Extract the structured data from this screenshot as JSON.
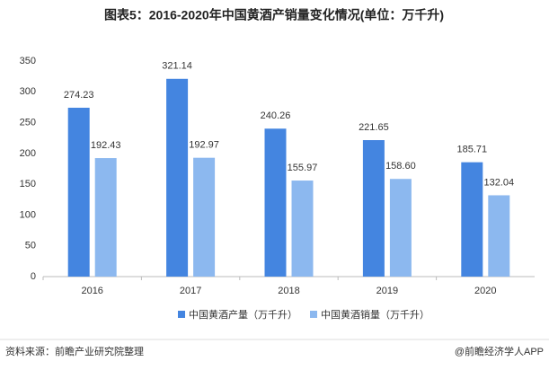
{
  "chart_data": {
    "type": "bar",
    "title": "图表5：2016-2020年中国黄酒产销量变化情况(单位：万千升)",
    "categories": [
      "2016",
      "2017",
      "2018",
      "2019",
      "2020"
    ],
    "series": [
      {
        "name": "中国黄酒产量（万千升）",
        "color": "#4485e0",
        "values": [
          274.23,
          321.14,
          240.26,
          221.65,
          185.71
        ]
      },
      {
        "name": "中国黄酒销量（万千升）",
        "color": "#8cb8ef",
        "values": [
          192.43,
          192.97,
          155.97,
          158.6,
          132.04
        ],
        "value_labels": [
          "192.43",
          "192.97",
          "155.97",
          "158.60",
          "132.04"
        ]
      }
    ],
    "ylim": [
      0,
      350
    ],
    "yticks": [
      0,
      50,
      100,
      150,
      200,
      250,
      300,
      350
    ],
    "grid": false,
    "legend": "bottom",
    "source": "资料来源：前瞻产业研究院整理",
    "credit": "@前瞻经济学人APP"
  }
}
